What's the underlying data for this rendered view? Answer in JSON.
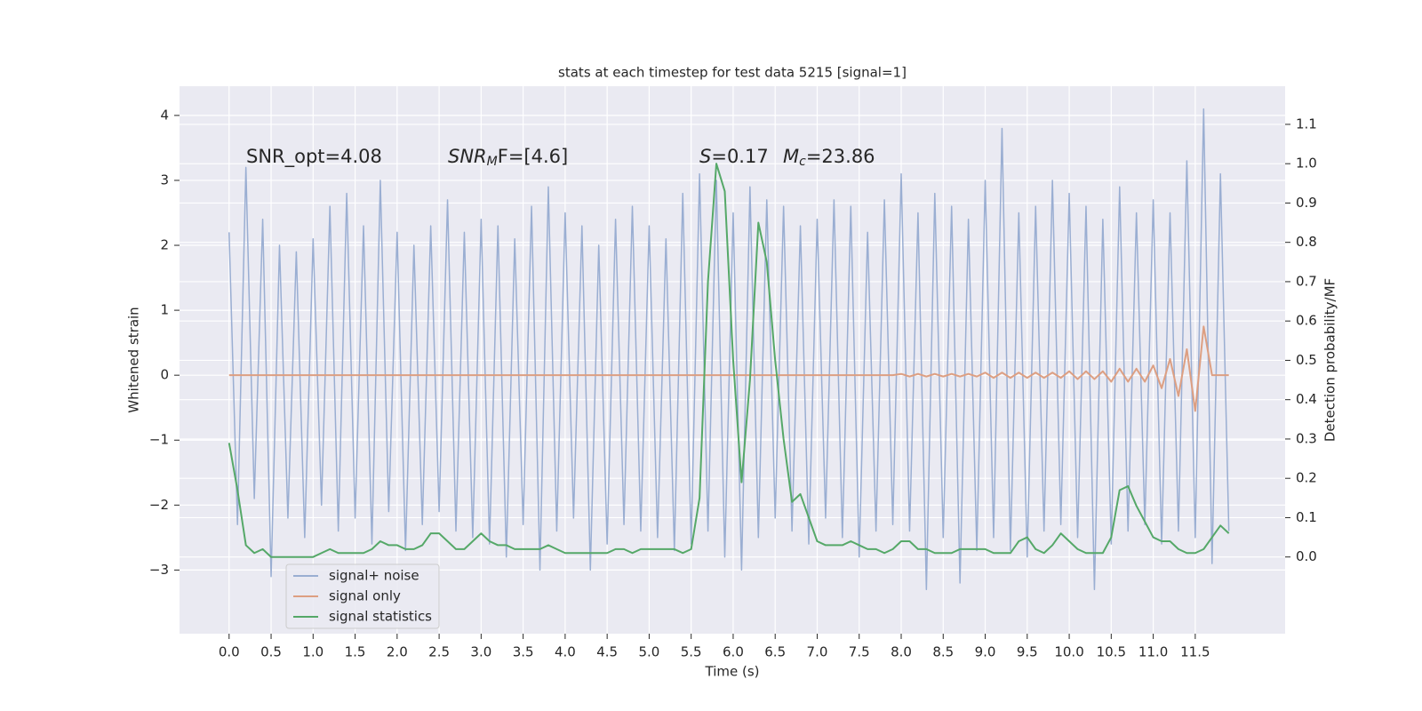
{
  "chart_data": {
    "type": "line",
    "title": "stats at each timestep for test data 5215 [signal=1]",
    "x_label": "Time (s)",
    "y_label": "Whitened strain",
    "y2_label": "Detection probability/MF",
    "annotations": [
      [
        "SNR_opt=4.08"
      ],
      [
        "SNR",
        "M",
        "F=[4.6]"
      ],
      [
        "S",
        "=0.17"
      ],
      [
        "M",
        "c",
        "=23.86"
      ]
    ],
    "grid": true,
    "legend": "lower left",
    "xlim": [
      -0.59,
      12.57
    ],
    "ylim": [
      -3.98,
      4.45
    ],
    "y2lim": [
      -0.195,
      1.197
    ],
    "xticks": [
      {
        "value": 0,
        "label": "0.0"
      },
      0.5,
      {
        "value": 1,
        "label": "1.0"
      },
      1.5,
      {
        "value": 2,
        "label": "2.0"
      },
      2.5,
      {
        "value": 3,
        "label": "3.0"
      },
      3.5,
      {
        "value": 4,
        "label": "4.0"
      },
      4.5,
      {
        "value": 5,
        "label": "5.0"
      },
      5.5,
      {
        "value": 6,
        "label": "6.0"
      },
      6.5,
      {
        "value": 7,
        "label": "7.0"
      },
      7.5,
      {
        "value": 8,
        "label": "8.0"
      },
      8.5,
      {
        "value": 9,
        "label": "9.0"
      },
      9.5,
      {
        "value": 10,
        "label": "10.0"
      },
      10.5,
      {
        "value": 11,
        "label": "11.0"
      },
      11.5
    ],
    "yticks": [
      {
        "value": -3,
        "label": "−3"
      },
      {
        "value": -2,
        "label": "−2"
      },
      {
        "value": -1,
        "label": "−1"
      },
      0,
      1,
      2,
      3,
      4
    ],
    "y2ticks": [
      {
        "value": 0,
        "label": "0.0"
      },
      0.1,
      0.2,
      0.3,
      0.4,
      0.5,
      0.6,
      0.7,
      0.8,
      0.9,
      {
        "value": 1,
        "label": "1.0"
      },
      1.1
    ],
    "x": [
      0,
      0.1,
      0.2,
      0.3,
      0.4,
      0.5,
      0.6,
      0.7,
      0.8,
      0.9,
      1,
      1.1,
      1.2,
      1.3,
      1.4,
      1.5,
      1.6,
      1.7,
      1.8,
      1.9,
      2,
      2.1,
      2.2,
      2.3,
      2.4,
      2.5,
      2.6,
      2.7,
      2.8,
      2.9,
      3,
      3.1,
      3.2,
      3.3,
      3.4,
      3.5,
      3.6,
      3.7,
      3.8,
      3.9,
      4,
      4.1,
      4.2,
      4.3,
      4.4,
      4.5,
      4.6,
      4.7,
      4.8,
      4.9,
      5,
      5.1,
      5.2,
      5.3,
      5.4,
      5.5,
      5.6,
      5.7,
      5.8,
      5.9,
      6,
      6.1,
      6.2,
      6.3,
      6.4,
      6.5,
      6.6,
      6.7,
      6.8,
      6.9,
      7,
      7.1,
      7.2,
      7.3,
      7.4,
      7.5,
      7.6,
      7.7,
      7.8,
      7.9,
      8,
      8.1,
      8.2,
      8.3,
      8.4,
      8.5,
      8.6,
      8.7,
      8.8,
      8.9,
      9,
      9.1,
      9.2,
      9.3,
      9.4,
      9.5,
      9.6,
      9.7,
      9.8,
      9.9,
      10,
      10.1,
      10.2,
      10.3,
      10.4,
      10.5,
      10.6,
      10.7,
      10.8,
      10.9,
      11,
      11.1,
      11.2,
      11.3,
      11.4,
      11.5,
      11.6,
      11.7,
      11.8,
      11.9
    ],
    "series": [
      {
        "name": "signal+ noise",
        "color": "#9aaed2",
        "axis": "y",
        "values": [
          2.2,
          -2.3,
          3.2,
          -1.9,
          2.4,
          -3.1,
          2.0,
          -2.2,
          1.9,
          -2.5,
          2.1,
          -2.0,
          2.6,
          -2.4,
          2.8,
          -2.2,
          2.3,
          -2.6,
          3.0,
          -2.1,
          2.2,
          -2.7,
          2.0,
          -2.3,
          2.3,
          -2.1,
          2.7,
          -2.4,
          2.2,
          -2.5,
          2.4,
          -2.6,
          2.3,
          -2.8,
          2.1,
          -2.3,
          2.6,
          -3.0,
          2.9,
          -2.4,
          2.5,
          -2.2,
          2.3,
          -3.0,
          2.0,
          -2.6,
          2.4,
          -2.3,
          2.6,
          -2.4,
          2.3,
          -2.5,
          2.1,
          -2.7,
          2.8,
          -2.6,
          3.1,
          -2.4,
          3.0,
          -2.8,
          2.5,
          -3.0,
          2.9,
          -2.5,
          2.7,
          -2.2,
          2.6,
          -2.4,
          2.3,
          -2.6,
          2.4,
          -2.2,
          2.7,
          -2.5,
          2.6,
          -2.8,
          2.2,
          -2.4,
          2.7,
          -2.3,
          3.1,
          -2.4,
          2.5,
          -3.3,
          2.8,
          -2.5,
          2.6,
          -3.2,
          2.4,
          -2.7,
          3.0,
          -2.5,
          3.8,
          -2.7,
          2.5,
          -2.8,
          2.6,
          -2.4,
          3.0,
          -2.3,
          2.8,
          -2.5,
          2.6,
          -3.3,
          2.4,
          -2.6,
          2.9,
          -2.4,
          2.5,
          -2.3,
          2.7,
          -2.6,
          2.5,
          -2.4,
          3.3,
          -2.5,
          4.1,
          -2.9,
          3.1,
          -2.4
        ]
      },
      {
        "name": "signal only",
        "color": "#dd9f82",
        "axis": "y",
        "values": [
          0,
          0,
          0,
          0,
          0,
          0,
          0,
          0,
          0,
          0,
          0,
          0,
          0,
          0,
          0,
          0,
          0,
          0,
          0,
          0,
          0,
          0,
          0,
          0,
          0,
          0,
          0,
          0,
          0,
          0,
          0,
          0,
          0,
          0,
          0,
          0,
          0,
          0,
          0,
          0,
          0,
          0,
          0,
          0,
          0,
          0,
          0,
          0,
          0,
          0,
          0,
          0,
          0,
          0,
          0,
          0,
          0,
          0,
          0,
          0,
          0,
          0,
          0,
          0,
          0,
          0,
          0,
          0,
          0,
          0,
          0,
          0,
          0,
          0,
          0,
          0,
          0,
          0,
          0,
          0,
          0.02,
          -0.02,
          0.02,
          -0.02,
          0.02,
          -0.02,
          0.02,
          -0.02,
          0.02,
          -0.02,
          0.04,
          -0.04,
          0.04,
          -0.04,
          0.04,
          -0.04,
          0.04,
          -0.04,
          0.04,
          -0.04,
          0.06,
          -0.06,
          0.06,
          -0.06,
          0.06,
          -0.1,
          0.1,
          -0.1,
          0.1,
          -0.1,
          0.15,
          -0.2,
          0.25,
          -0.32,
          0.4,
          -0.55,
          0.75,
          0,
          0,
          0
        ]
      },
      {
        "name": "signal statistics",
        "color": "#55a868",
        "axis": "y2",
        "values": [
          0.29,
          0.17,
          0.03,
          0.01,
          0.02,
          0,
          0,
          0,
          0,
          0,
          0,
          0.01,
          0.02,
          0.01,
          0.01,
          0.01,
          0.01,
          0.02,
          0.04,
          0.03,
          0.03,
          0.02,
          0.02,
          0.03,
          0.06,
          0.06,
          0.04,
          0.02,
          0.02,
          0.04,
          0.06,
          0.04,
          0.03,
          0.03,
          0.02,
          0.02,
          0.02,
          0.02,
          0.03,
          0.02,
          0.01,
          0.01,
          0.01,
          0.01,
          0.01,
          0.01,
          0.02,
          0.02,
          0.01,
          0.02,
          0.02,
          0.02,
          0.02,
          0.02,
          0.01,
          0.02,
          0.15,
          0.7,
          1.0,
          0.93,
          0.5,
          0.19,
          0.45,
          0.85,
          0.75,
          0.5,
          0.3,
          0.14,
          0.16,
          0.1,
          0.04,
          0.03,
          0.03,
          0.03,
          0.04,
          0.03,
          0.02,
          0.02,
          0.01,
          0.02,
          0.04,
          0.04,
          0.02,
          0.02,
          0.01,
          0.01,
          0.01,
          0.02,
          0.02,
          0.02,
          0.02,
          0.01,
          0.01,
          0.01,
          0.04,
          0.05,
          0.02,
          0.01,
          0.03,
          0.06,
          0.04,
          0.02,
          0.01,
          0.01,
          0.01,
          0.05,
          0.17,
          0.18,
          0.13,
          0.09,
          0.05,
          0.04,
          0.04,
          0.02,
          0.01,
          0.01,
          0.02,
          0.05,
          0.08,
          0.06
        ]
      }
    ]
  }
}
